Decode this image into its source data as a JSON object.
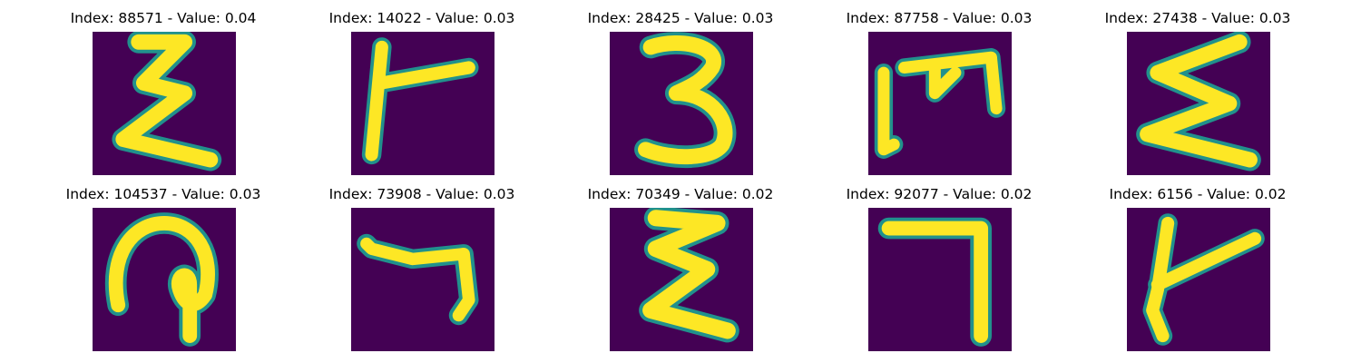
{
  "figure": {
    "colors": {
      "background": "#440154",
      "edge": "#21918c",
      "stroke": "#fde725"
    },
    "panels": [
      {
        "index": "88571",
        "value": "0.04",
        "title": "Index: 88571 - Value: 0.04",
        "glyph": "sigma-like"
      },
      {
        "index": "14022",
        "value": "0.03",
        "title": "Index: 14022 - Value: 0.03",
        "glyph": "rotated-t"
      },
      {
        "index": "28425",
        "value": "0.03",
        "title": "Index: 28425 - Value: 0.03",
        "glyph": "three"
      },
      {
        "index": "87758",
        "value": "0.03",
        "title": "Index: 87758 - Value: 0.03",
        "glyph": "rotated-m"
      },
      {
        "index": "27438",
        "value": "0.03",
        "title": "Index: 27438 - Value: 0.03",
        "glyph": "sigma-like"
      },
      {
        "index": "104537",
        "value": "0.03",
        "title": "Index: 104537 - Value: 0.03",
        "glyph": "loop"
      },
      {
        "index": "73908",
        "value": "0.03",
        "title": "Index: 73908 - Value: 0.03",
        "glyph": "hook"
      },
      {
        "index": "70349",
        "value": "0.02",
        "title": "Index: 70349 - Value: 0.02",
        "glyph": "sigma-like"
      },
      {
        "index": "92077",
        "value": "0.02",
        "title": "Index: 92077 - Value: 0.02",
        "glyph": "seven"
      },
      {
        "index": "6156",
        "value": "0.02",
        "title": "Index: 6156 - Value: 0.02",
        "glyph": "rotated-t"
      }
    ]
  }
}
